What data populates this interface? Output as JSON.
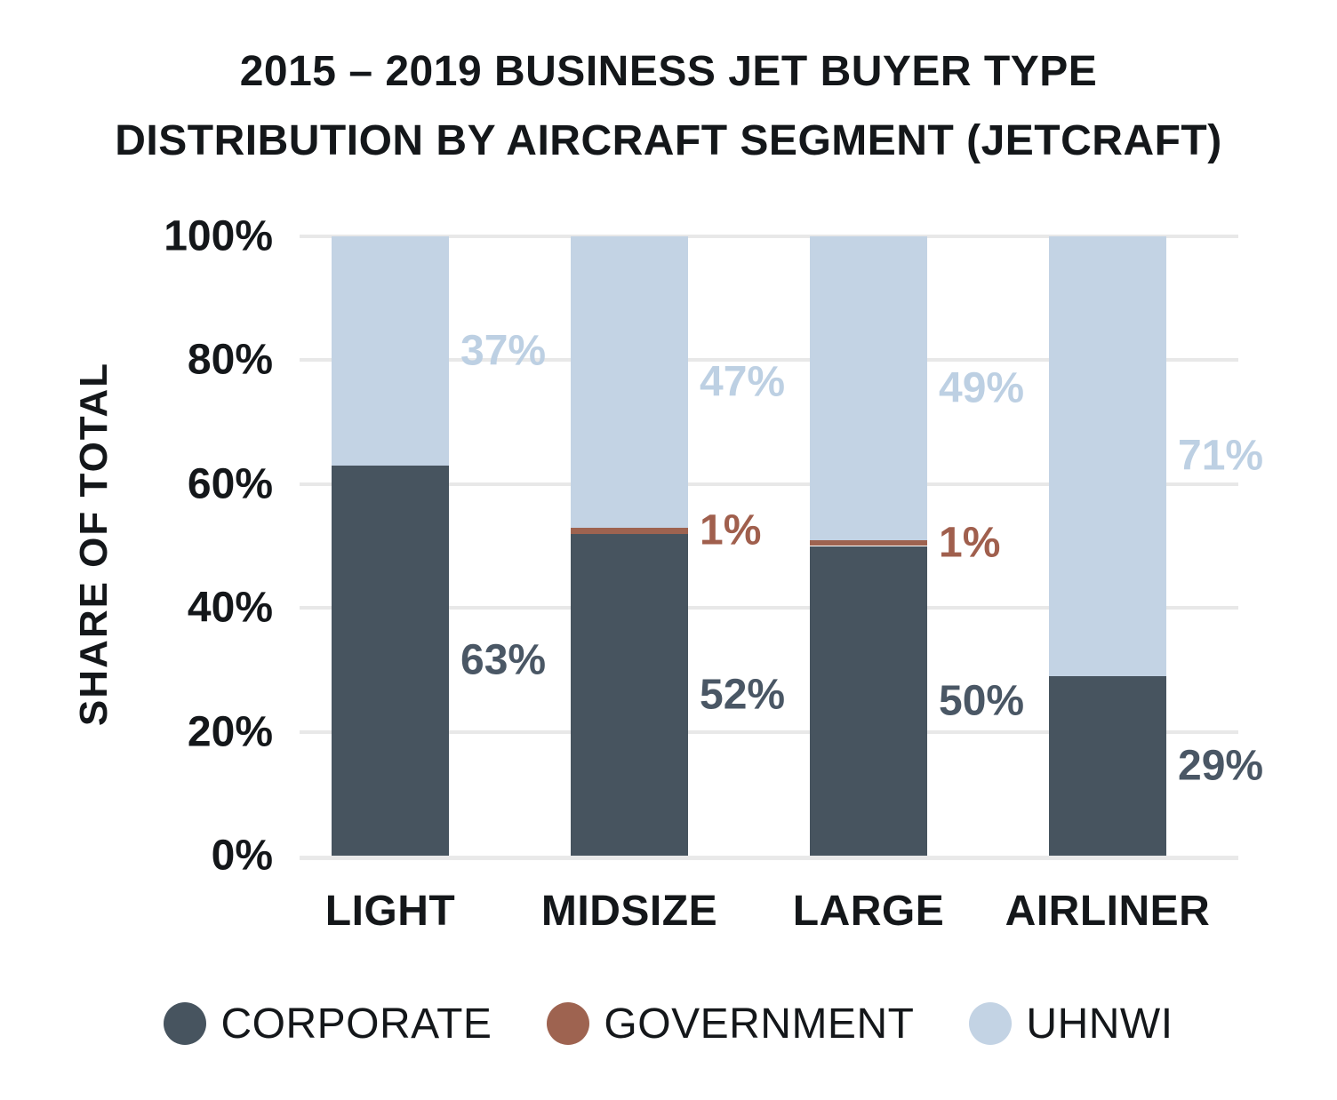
{
  "title": {
    "line1": "2015 – 2019 BUSINESS JET BUYER TYPE",
    "line2": "DISTRIBUTION BY AIRCRAFT SEGMENT (JETCRAFT)"
  },
  "y_axis": {
    "label": "SHARE OF TOTAL",
    "ticks": [
      {
        "label": "100%",
        "value": 100
      },
      {
        "label": "80%",
        "value": 80
      },
      {
        "label": "60%",
        "value": 60
      },
      {
        "label": "40%",
        "value": 40
      },
      {
        "label": "20%",
        "value": 20
      },
      {
        "label": "0%",
        "value": 0
      }
    ]
  },
  "chart_data": {
    "type": "bar",
    "stacked": true,
    "title": "2015 – 2019 BUSINESS JET BUYER TYPE DISTRIBUTION BY AIRCRAFT SEGMENT (JETCRAFT)",
    "xlabel": "",
    "ylabel": "SHARE OF TOTAL",
    "ylim": [
      0,
      100
    ],
    "grid": true,
    "legend_position": "bottom",
    "categories": [
      "LIGHT",
      "MIDSIZE",
      "LARGE",
      "AIRLINER"
    ],
    "series": [
      {
        "name": "CORPORATE",
        "color": "#47545f",
        "label_color": "#4a5765",
        "values": [
          63,
          52,
          50,
          29
        ],
        "labels": [
          "63%",
          "52%",
          "50%",
          "29%"
        ]
      },
      {
        "name": "GOVERNMENT",
        "color": "#9e6350",
        "label_color": "#a05f4d",
        "values": [
          0,
          1,
          1,
          0
        ],
        "labels": [
          "",
          "1%",
          "1%",
          ""
        ]
      },
      {
        "name": "UHNWI",
        "color": "#c3d3e4",
        "label_color": "#bdd0e3",
        "values": [
          37,
          47,
          49,
          71
        ],
        "labels": [
          "37%",
          "47%",
          "49%",
          "71%"
        ]
      }
    ]
  },
  "colors": {
    "background": "#ffffff",
    "text": "#14171a",
    "gridline": "#e8e8e8",
    "axis_line": "#e9e9e9"
  }
}
